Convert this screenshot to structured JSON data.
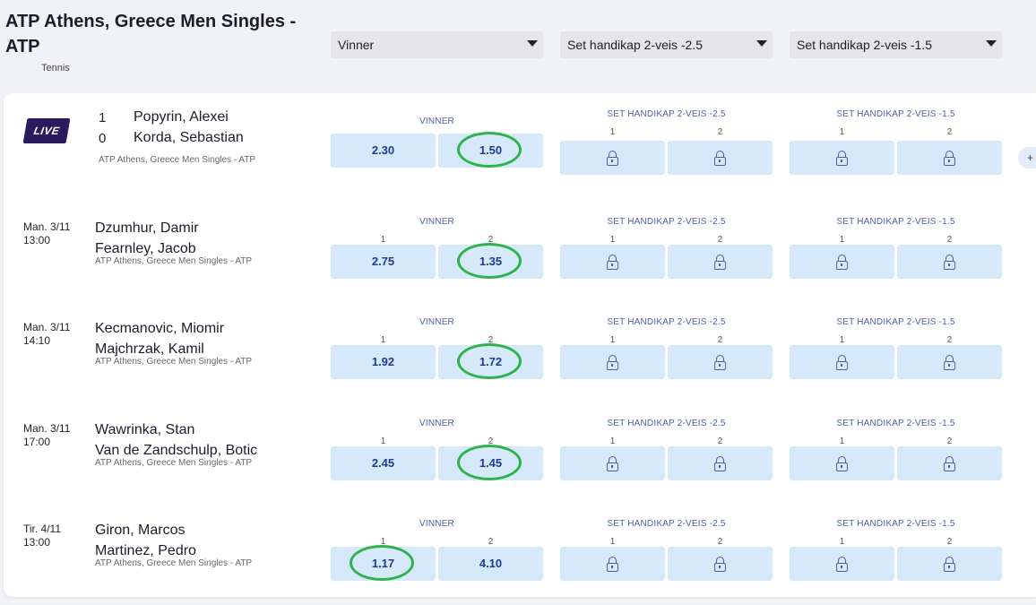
{
  "header": {
    "title": "ATP Athens, Greece Men Singles - ATP",
    "sport": "Tennis"
  },
  "filters": [
    {
      "label": "Vinner"
    },
    {
      "label": "Set handikap 2-veis -2.5"
    },
    {
      "label": "Set handikap 2-veis -1.5"
    }
  ],
  "live_label": "LIVE",
  "more_label": "+",
  "markets": [
    "VINNER",
    "SET HANDIKAP 2-VEIS -2.5",
    "SET HANDIKAP 2-VEIS -1.5"
  ],
  "outcome_labels": [
    "1",
    "2"
  ],
  "highlight_color": "#2db34a",
  "events": [
    {
      "live": true,
      "day": "",
      "time": "",
      "score1": "1",
      "score2": "0",
      "player1": "Popyrin, Alexei",
      "player2": "Korda, Sebastian",
      "league": "ATP Athens, Greece Men Singles - ATP",
      "odds1": "2.30",
      "odds2": "1.50",
      "winner_outcome_labels_shown": false,
      "circled": 2
    },
    {
      "live": false,
      "day": "Man. 3/11",
      "time": "13:00",
      "player1": "Dzumhur, Damir",
      "player2": "Fearnley, Jacob",
      "league": "ATP Athens, Greece Men Singles - ATP",
      "odds1": "2.75",
      "odds2": "1.35",
      "winner_outcome_labels_shown": true,
      "circled": 2
    },
    {
      "live": false,
      "day": "Man. 3/11",
      "time": "14:10",
      "player1": "Kecmanovic, Miomir",
      "player2": "Majchrzak, Kamil",
      "league": "ATP Athens, Greece Men Singles - ATP",
      "odds1": "1.92",
      "odds2": "1.72",
      "winner_outcome_labels_shown": true,
      "circled": 2
    },
    {
      "live": false,
      "day": "Man. 3/11",
      "time": "17:00",
      "player1": "Wawrinka, Stan",
      "player2": "Van de Zandschulp, Botic",
      "league": "ATP Athens, Greece Men Singles - ATP",
      "odds1": "2.45",
      "odds2": "1.45",
      "winner_outcome_labels_shown": true,
      "circled": 2
    },
    {
      "live": false,
      "day": "Tir. 4/11",
      "time": "13:00",
      "player1": "Giron, Marcos",
      "player2": "Martinez, Pedro",
      "league": "ATP Athens, Greece Men Singles - ATP",
      "odds1": "1.17",
      "odds2": "4.10",
      "winner_outcome_labels_shown": true,
      "circled": 1
    }
  ]
}
